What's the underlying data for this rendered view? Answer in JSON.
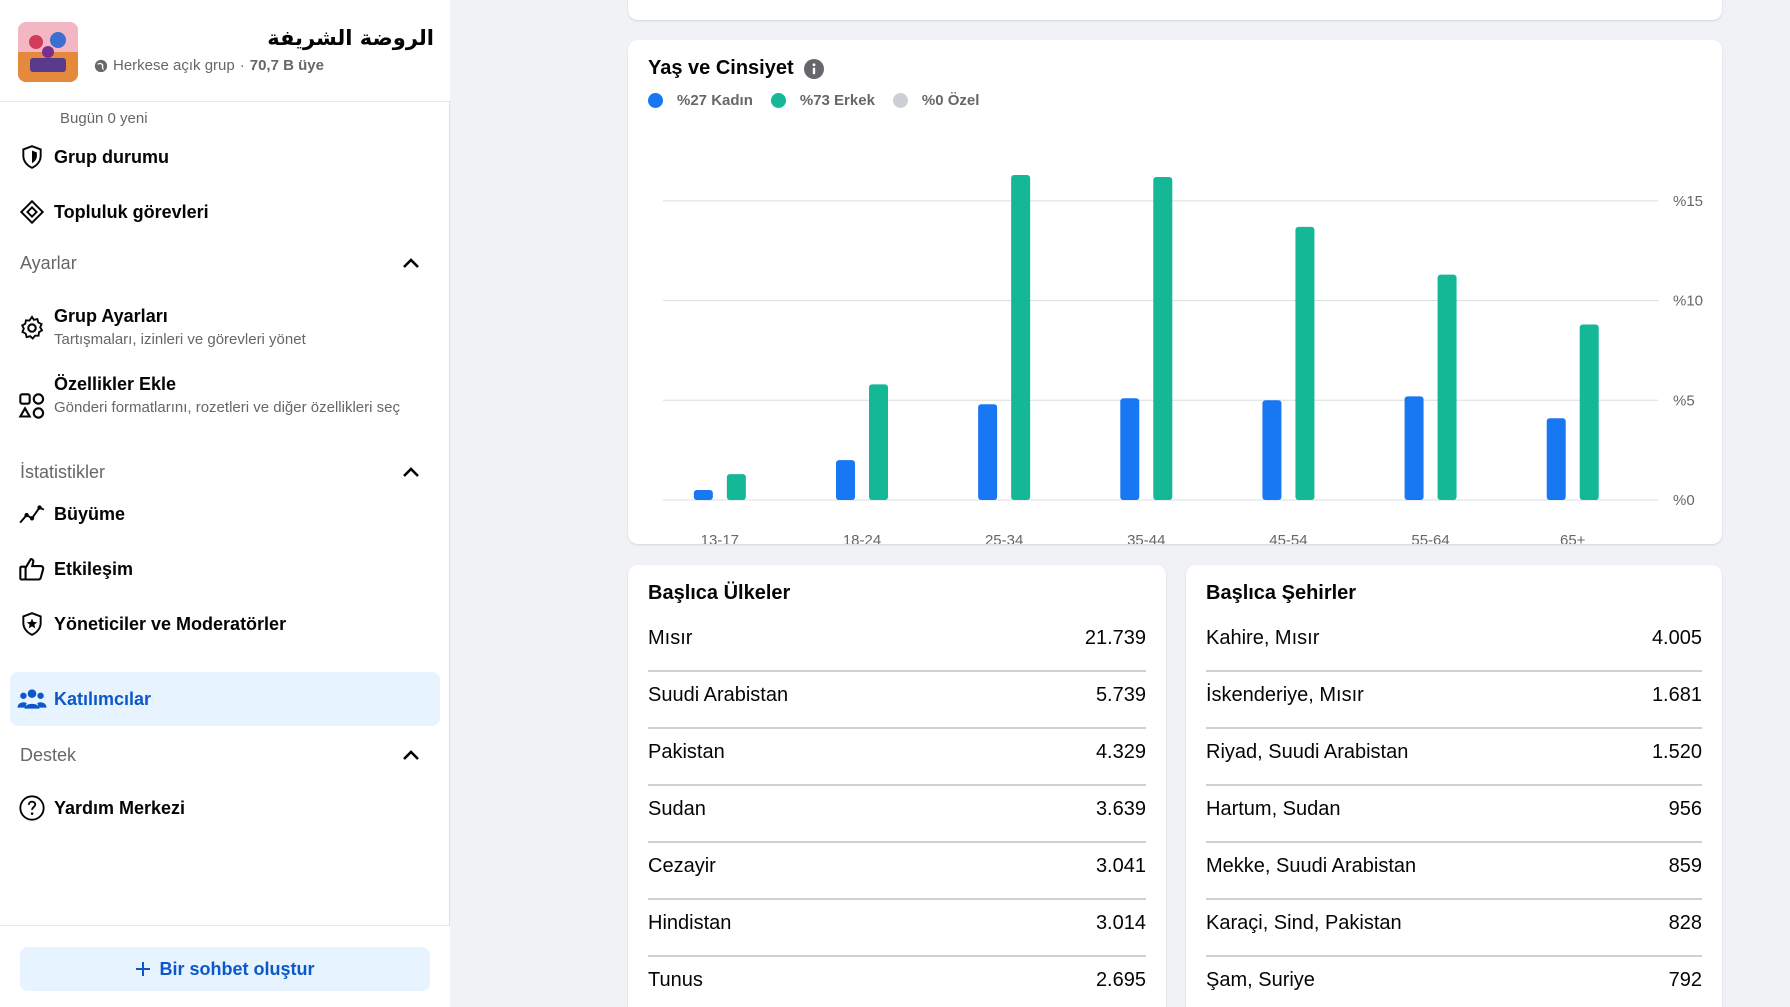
{
  "group": {
    "name": "الروضة الشريفة",
    "privacy": "Herkese açık grup",
    "members": "70,7 B üye"
  },
  "nav": {
    "today_new": "Bugün 0 yeni",
    "group_status": "Grup durumu",
    "community_tasks": "Topluluk görevleri",
    "settings_header": "Ayarlar",
    "group_settings": "Grup Ayarları",
    "group_settings_sub": "Tartışmaları, izinleri ve görevleri yönet",
    "add_features": "Özellikler Ekle",
    "add_features_sub": "Gönderi formatlarını, rozetleri ve diğer özellikleri seç",
    "insights_header": "İstatistikler",
    "growth": "Büyüme",
    "engagement": "Etkileşim",
    "admins_mods": "Yöneticiler ve Moderatörler",
    "members": "Katılımcılar",
    "support_header": "Destek",
    "help_center": "Yardım Merkezi"
  },
  "footer": {
    "create_chat": "Bir sohbet oluştur"
  },
  "chart_card": {
    "title": "Yaş ve Cinsiyet",
    "legend": [
      "%27 Kadın",
      "%73 Erkek",
      "%0 Özel"
    ]
  },
  "chart_data": {
    "type": "bar",
    "title": "Yaş ve Cinsiyet",
    "categories": [
      "13-17",
      "18-24",
      "25-34",
      "35-44",
      "45-54",
      "55-64",
      "65+"
    ],
    "series": [
      {
        "name": "%27 Kadın",
        "color": "#1877f2",
        "values": [
          0.5,
          2.0,
          4.8,
          5.1,
          5.0,
          5.2,
          4.1
        ]
      },
      {
        "name": "%73 Erkek",
        "color": "#14b897",
        "values": [
          1.3,
          5.8,
          16.3,
          16.2,
          13.7,
          11.3,
          8.8
        ]
      },
      {
        "name": "%0 Özel",
        "color": "#ccd0d5",
        "values": [
          0,
          0,
          0,
          0,
          0,
          0,
          0
        ]
      }
    ],
    "yticks": [
      "%0",
      "%5",
      "%10",
      "%15"
    ],
    "ylim": [
      0,
      16.5
    ],
    "grid": true
  },
  "countries": {
    "title": "Başlıca Ülkeler",
    "rows": [
      {
        "name": "Mısır",
        "value": "21.739"
      },
      {
        "name": "Suudi Arabistan",
        "value": "5.739"
      },
      {
        "name": "Pakistan",
        "value": "4.329"
      },
      {
        "name": "Sudan",
        "value": "3.639"
      },
      {
        "name": "Cezayir",
        "value": "3.041"
      },
      {
        "name": "Hindistan",
        "value": "3.014"
      },
      {
        "name": "Tunus",
        "value": "2.695"
      }
    ]
  },
  "cities": {
    "title": "Başlıca Şehirler",
    "rows": [
      {
        "name": "Kahire, Mısır",
        "value": "4.005"
      },
      {
        "name": "İskenderiye, Mısır",
        "value": "1.681"
      },
      {
        "name": "Riyad, Suudi Arabistan",
        "value": "1.520"
      },
      {
        "name": "Hartum, Sudan",
        "value": "956"
      },
      {
        "name": "Mekke, Suudi Arabistan",
        "value": "859"
      },
      {
        "name": "Karaçi, Sind, Pakistan",
        "value": "828"
      },
      {
        "name": "Şam, Suriye",
        "value": "792"
      }
    ]
  }
}
